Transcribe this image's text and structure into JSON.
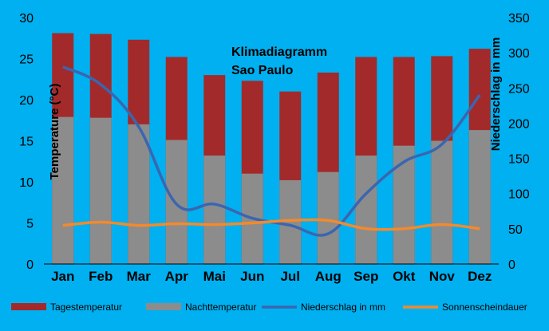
{
  "chart_data": {
    "type": "bar",
    "title_line1": "Klimadiagramm",
    "title_line2": "Sao Paulo",
    "ylabel_left": "Temperature (°C)",
    "ylabel_right": "Niederschlag in mm",
    "ylim_left": [
      0,
      30
    ],
    "yticks_left": [
      0,
      5,
      10,
      15,
      20,
      25,
      30
    ],
    "ylim_right": [
      0,
      350
    ],
    "yticks_right": [
      0,
      50,
      100,
      150,
      200,
      250,
      300,
      350
    ],
    "categories": [
      "Jan",
      "Feb",
      "Mar",
      "Apr",
      "Mai",
      "Jun",
      "Jul",
      "Aug",
      "Sep",
      "Okt",
      "Nov",
      "Dez"
    ],
    "series": [
      {
        "name": "Tagestemperatur",
        "kind": "bar",
        "axis": "left",
        "color": "#a32a2a",
        "values": [
          28.1,
          28.0,
          27.3,
          25.2,
          23.0,
          22.3,
          21.0,
          23.3,
          25.2,
          25.2,
          25.3,
          26.2
        ]
      },
      {
        "name": "Nachttemperatur",
        "kind": "bar",
        "axis": "left",
        "color": "#8c8c8c",
        "values": [
          17.9,
          17.8,
          17.0,
          15.1,
          13.2,
          11.0,
          10.2,
          11.2,
          13.2,
          14.4,
          15.0,
          16.3
        ]
      },
      {
        "name": "Niederschlag in mm",
        "kind": "line",
        "axis": "right",
        "color": "#3a66b0",
        "values": [
          280,
          255,
          195,
          85,
          85,
          65,
          55,
          43,
          100,
          145,
          170,
          240
        ]
      },
      {
        "name": "Sonnenscheindauer",
        "kind": "line",
        "axis": "left",
        "color": "#f28a2e",
        "values": [
          4.7,
          5.1,
          4.7,
          4.9,
          4.8,
          5.0,
          5.3,
          5.3,
          4.3,
          4.3,
          4.8,
          4.3
        ]
      }
    ],
    "grid": false,
    "legend_position": "bottom"
  }
}
